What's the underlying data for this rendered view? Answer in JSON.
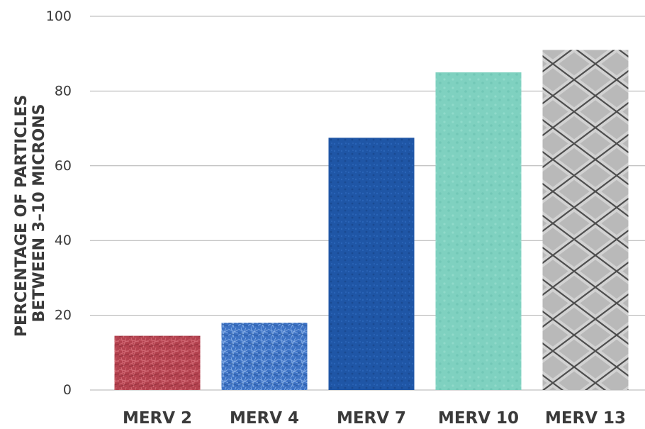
{
  "chart_data": {
    "type": "bar",
    "categories": [
      "MERV 2",
      "MERV 4",
      "MERV 7",
      "MERV 10",
      "MERV 13"
    ],
    "values": [
      14.5,
      18,
      67.5,
      85,
      91
    ],
    "title": "",
    "xlabel": "",
    "ylabel": [
      "PERCENTAGE OF PARTICLES",
      "BETWEEN 3–10 MICRONS"
    ],
    "ylim": [
      0,
      100
    ],
    "yticks": [
      0,
      20,
      40,
      60,
      80,
      100
    ],
    "grid": true,
    "bar_textures": [
      "red-fiber",
      "blue-fiber",
      "dark-blue-felt",
      "teal-felt",
      "gray-pleated-mesh"
    ],
    "colors": {
      "bars": [
        "#b3424f",
        "#3d72c4",
        "#1f56a6",
        "#7fd1c0",
        "#a9a9a9"
      ],
      "grid": "#b0b0b0",
      "text": "#3a3a3a"
    }
  }
}
